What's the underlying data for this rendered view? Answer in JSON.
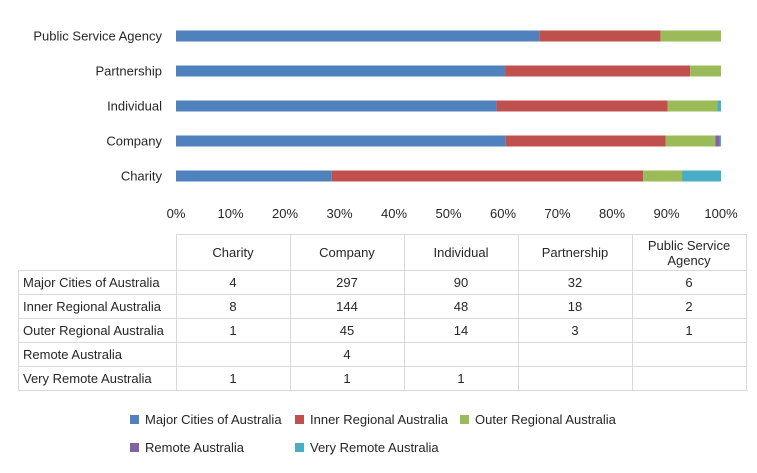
{
  "chart_data": {
    "type": "bar",
    "orientation": "horizontal",
    "stacked": "percent",
    "categories": [
      "Public Service Agency",
      "Partnership",
      "Individual",
      "Company",
      "Charity"
    ],
    "series": [
      {
        "name": "Major Cities of Australia",
        "color": "#4f81bd",
        "values": [
          6,
          32,
          90,
          297,
          4
        ]
      },
      {
        "name": "Inner Regional Australia",
        "color": "#c0504d",
        "values": [
          2,
          18,
          48,
          144,
          8
        ]
      },
      {
        "name": "Outer Regional Australia",
        "color": "#9bbb59",
        "values": [
          1,
          3,
          14,
          45,
          1
        ]
      },
      {
        "name": "Remote Australia",
        "color": "#8064a2",
        "values": [
          0,
          0,
          0,
          4,
          0
        ]
      },
      {
        "name": "Very Remote Australia",
        "color": "#4bacc6",
        "values": [
          0,
          0,
          1,
          1,
          1
        ]
      }
    ],
    "x_ticks": [
      "0%",
      "10%",
      "20%",
      "30%",
      "40%",
      "50%",
      "60%",
      "70%",
      "80%",
      "90%",
      "100%"
    ],
    "xlim": [
      0,
      100
    ],
    "grid": false,
    "legend": "bottom"
  },
  "table": {
    "columns": [
      "Charity",
      "Company",
      "Individual",
      "Partnership",
      "Public Service Agency"
    ],
    "rows": [
      {
        "label": "Major Cities of Australia",
        "cells": [
          "4",
          "297",
          "90",
          "32",
          "6"
        ]
      },
      {
        "label": "Inner Regional Australia",
        "cells": [
          "8",
          "144",
          "48",
          "18",
          "2"
        ]
      },
      {
        "label": "Outer Regional Australia",
        "cells": [
          "1",
          "45",
          "14",
          "3",
          "1"
        ]
      },
      {
        "label": "Remote Australia",
        "cells": [
          "",
          "4",
          "",
          "",
          ""
        ]
      },
      {
        "label": "Very Remote Australia",
        "cells": [
          "1",
          "1",
          "1",
          "",
          ""
        ]
      }
    ]
  }
}
